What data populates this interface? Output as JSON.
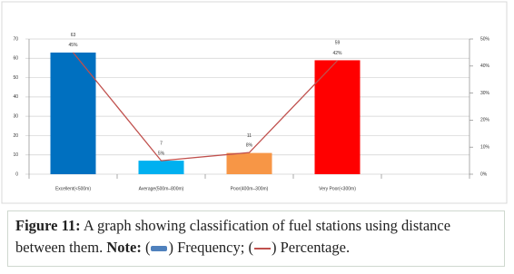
{
  "chart_data": {
    "type": "bar-line",
    "categories": [
      "Excellent(<500m)",
      "Average(500m–800m)",
      "Poor(400m–300m)",
      "Very Poor(<300m)"
    ],
    "series": [
      {
        "name": "Frequency",
        "type": "bar",
        "colors": [
          "#0070c0",
          "#00b0f0",
          "#f79646",
          "#ff0000"
        ],
        "values": [
          63,
          7,
          11,
          59
        ]
      },
      {
        "name": "Percentage",
        "type": "line",
        "axis": "y2",
        "color": "#c0504d",
        "values": [
          45,
          5,
          8,
          42
        ],
        "value_labels": [
          "45%",
          "5%",
          "8%",
          "42%"
        ]
      }
    ],
    "ylim": [
      0,
      70
    ],
    "yticks": [
      0,
      10,
      20,
      30,
      40,
      50,
      60,
      70
    ],
    "y2lim": [
      0,
      50
    ],
    "y2ticks": [
      {
        "value": 0,
        "label": "0%"
      },
      {
        "value": 10,
        "label": "10%"
      },
      {
        "value": 20,
        "label": "20%"
      },
      {
        "value": 30,
        "label": "30%"
      },
      {
        "value": 40,
        "label": "40%"
      },
      {
        "value": 50,
        "label": "50%"
      }
    ],
    "grid": true
  },
  "caption": {
    "figure": "Figure 11:",
    "text": "A graph showing classification of fuel stations using distance between them.",
    "note": "Note:"
  }
}
